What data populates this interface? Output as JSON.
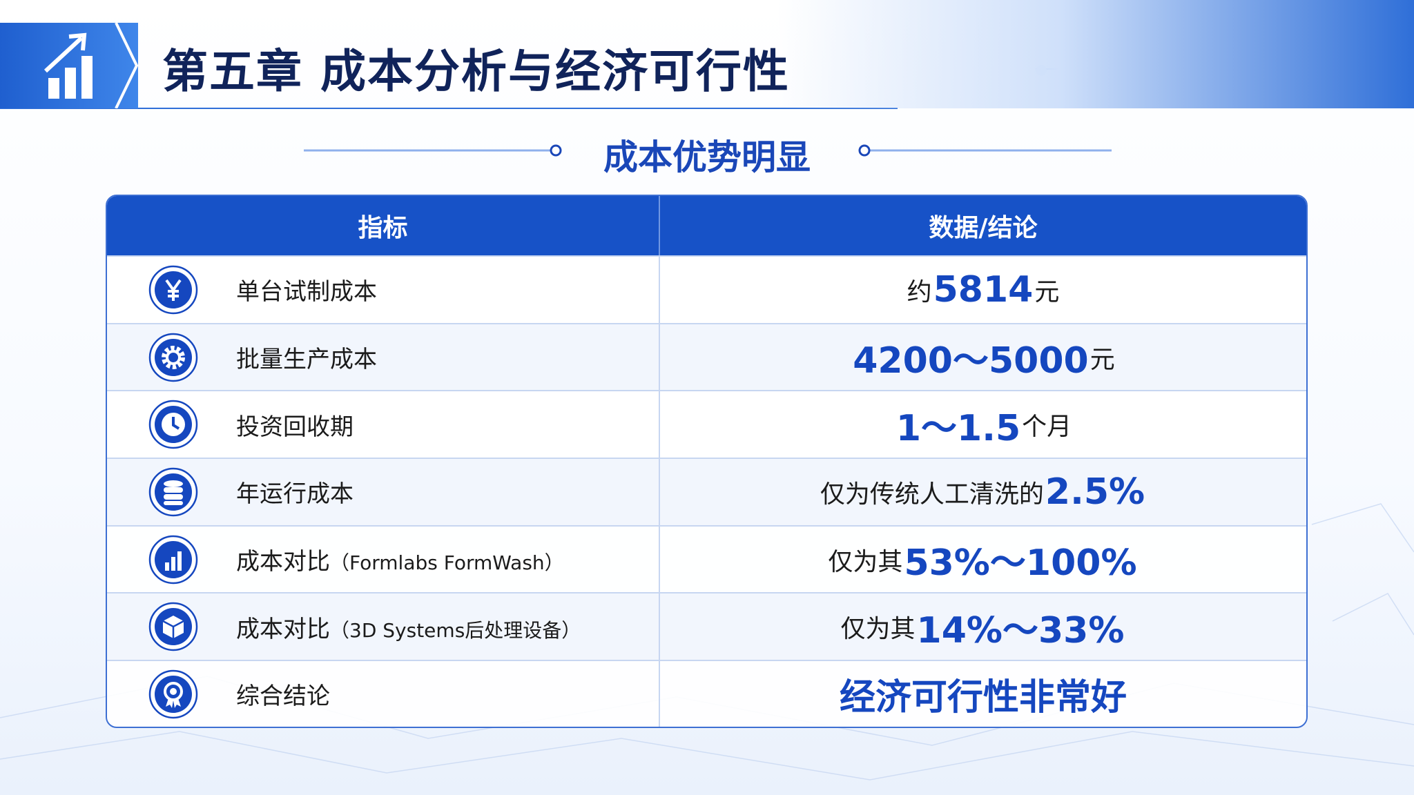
{
  "header": {
    "title": "第五章 成本分析与经济可行性"
  },
  "subtitle": "成本优势明显",
  "table": {
    "columns": [
      "指标",
      "数据/结论"
    ],
    "rows": [
      {
        "label": "单台试制成本",
        "value": {
          "prefix": "约",
          "highlight": "5814",
          "suffix": "元"
        }
      },
      {
        "label": "批量生产成本",
        "value": {
          "highlight": "4200～5000",
          "suffix": "元"
        }
      },
      {
        "label": "投资回收期",
        "value": {
          "highlight": "1～1.5",
          "suffix": "个月"
        }
      },
      {
        "label": "年运行成本",
        "value": {
          "prefix": "仅为传统人工清洗的",
          "highlight": "2.5%"
        }
      },
      {
        "label": "成本对比",
        "note": "（Formlabs FormWash）",
        "value": {
          "prefix": "仅为其 ",
          "highlight": "53%～100%"
        }
      },
      {
        "label": "成本对比",
        "note": "（3D Systems后处理设备）",
        "value": {
          "prefix": "仅为其 ",
          "highlight": "14%～33%"
        }
      },
      {
        "label": "综合结论",
        "value": {
          "highlight": "经济可行性非常好"
        }
      }
    ]
  }
}
